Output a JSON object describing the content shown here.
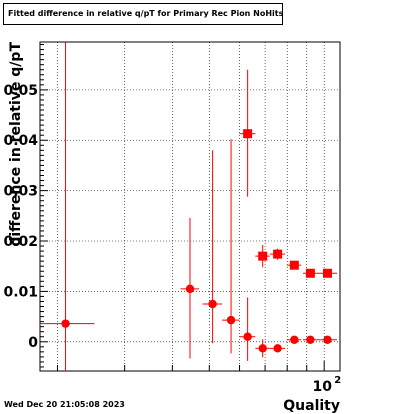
{
  "title": "Fitted difference in relative q/pT for Primary Rec Pion NoHits",
  "timestamp": "Wed Dec 20 21:05:08 2023",
  "chart_data": {
    "type": "scatter",
    "title": "Fitted difference in relative q/pT for Primary Rec Pion NoHits",
    "xlabel": "Quality",
    "ylabel": "difference in relative q/pT",
    "x_scale": "log",
    "x_tick_label": "10",
    "x_tick_label_exp": "2",
    "xlim": [
      18,
      110
    ],
    "ylim": [
      -0.0058,
      0.0595
    ],
    "y_ticks": [
      0,
      0.01,
      0.02,
      0.03,
      0.04,
      0.05
    ],
    "y_tick_labels": [
      "0",
      "0.01",
      "0.02",
      "0.03",
      "0.04",
      "0.05"
    ],
    "grid": true,
    "color": "#ff0000",
    "series": [
      {
        "marker": "circle",
        "points": [
          {
            "x": 21.0,
            "y": 0.0036,
            "yerr_low": 0.0626,
            "yerr_high": 0.0626,
            "x_low": 18.0,
            "x_high": 25.0
          },
          {
            "x": 44.5,
            "y": 0.0105,
            "yerr_low": 0.0138,
            "yerr_high": 0.0141,
            "x_low": 42.0,
            "x_high": 47.0
          },
          {
            "x": 51.0,
            "y": 0.0075,
            "yerr_low": 0.0078,
            "yerr_high": 0.0305,
            "x_low": 48.0,
            "x_high": 54.0
          },
          {
            "x": 57.0,
            "y": 0.0043,
            "yerr_low": 0.0066,
            "yerr_high": 0.0359,
            "x_low": 54.0,
            "x_high": 60.0
          },
          {
            "x": 63.0,
            "y": 0.001,
            "yerr_low": 0.0048,
            "yerr_high": 0.0078,
            "x_low": 60.0,
            "x_high": 66.0
          },
          {
            "x": 69.0,
            "y": -0.0013,
            "yerr_low": 0.0018,
            "yerr_high": 0.0018,
            "x_low": 66.0,
            "x_high": 72.0
          },
          {
            "x": 75.5,
            "y": -0.0013,
            "yerr_low": 0.0006,
            "yerr_high": 0.0006,
            "x_low": 72.0,
            "x_high": 79.0
          },
          {
            "x": 83.5,
            "y": 0.0004,
            "yerr_low": 0.0003,
            "yerr_high": 0.0003,
            "x_low": 80.0,
            "x_high": 87.0
          },
          {
            "x": 92.0,
            "y": 0.0004,
            "yerr_low": 0.0002,
            "yerr_high": 0.0002,
            "x_low": 88.0,
            "x_high": 96.0
          },
          {
            "x": 102.0,
            "y": 0.0004,
            "yerr_low": 0.0002,
            "yerr_high": 0.0002,
            "x_low": 96.0,
            "x_high": 108.0
          }
        ]
      },
      {
        "marker": "square",
        "points": [
          {
            "x": 63.0,
            "y": 0.0413,
            "yerr_low": 0.0125,
            "yerr_high": 0.0127,
            "x_low": 60.0,
            "x_high": 66.0
          },
          {
            "x": 69.0,
            "y": 0.017,
            "yerr_low": 0.0022,
            "yerr_high": 0.0022,
            "x_low": 66.0,
            "x_high": 72.0
          },
          {
            "x": 75.5,
            "y": 0.0174,
            "yerr_low": 0.0011,
            "yerr_high": 0.0011,
            "x_low": 72.0,
            "x_high": 79.0
          },
          {
            "x": 83.5,
            "y": 0.0152,
            "yerr_low": 0.0007,
            "yerr_high": 0.0007,
            "x_low": 80.0,
            "x_high": 87.0
          },
          {
            "x": 92.0,
            "y": 0.0136,
            "yerr_low": 0.0004,
            "yerr_high": 0.0004,
            "x_low": 88.0,
            "x_high": 96.0
          },
          {
            "x": 102.0,
            "y": 0.0136,
            "yerr_low": 0.0004,
            "yerr_high": 0.0004,
            "x_low": 96.0,
            "x_high": 108.0
          }
        ]
      }
    ]
  }
}
